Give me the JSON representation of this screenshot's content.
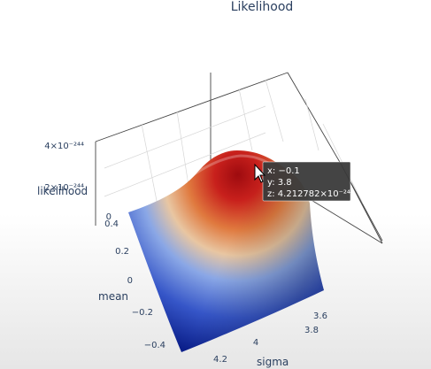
{
  "chart_data": {
    "type": "surface",
    "title": "Likelihood",
    "axes": {
      "x": {
        "label": "mean",
        "range": [
          -0.4,
          0.4
        ],
        "ticks": [
          "0.4",
          "0.2",
          "0",
          "−0.2",
          "−0.4"
        ]
      },
      "y": {
        "label": "sigma",
        "range": [
          3.55,
          4.25
        ],
        "ticks": [
          "3.6",
          "3.8",
          "4",
          "4.2"
        ]
      },
      "z": {
        "label": "likelihood",
        "range": [
          0,
          4.3e-244
        ],
        "ticks": [
          "0",
          "2×10⁻²⁴⁴",
          "4×10⁻²⁴⁴"
        ]
      }
    },
    "peak": {
      "x": -0.1,
      "y": 3.8,
      "z": 4.212782e-244
    },
    "grid": true,
    "colorscale": [
      "#0b1f8a",
      "#3656c8",
      "#8aa7e6",
      "#e8c6a2",
      "#e07a3f",
      "#c8201c",
      "#9e0b0f"
    ],
    "hover": {
      "x_text": "x: −0.1",
      "y_text": "y: 3.8",
      "z_text": "z: 4.212782×10⁻²⁴⁴"
    }
  }
}
